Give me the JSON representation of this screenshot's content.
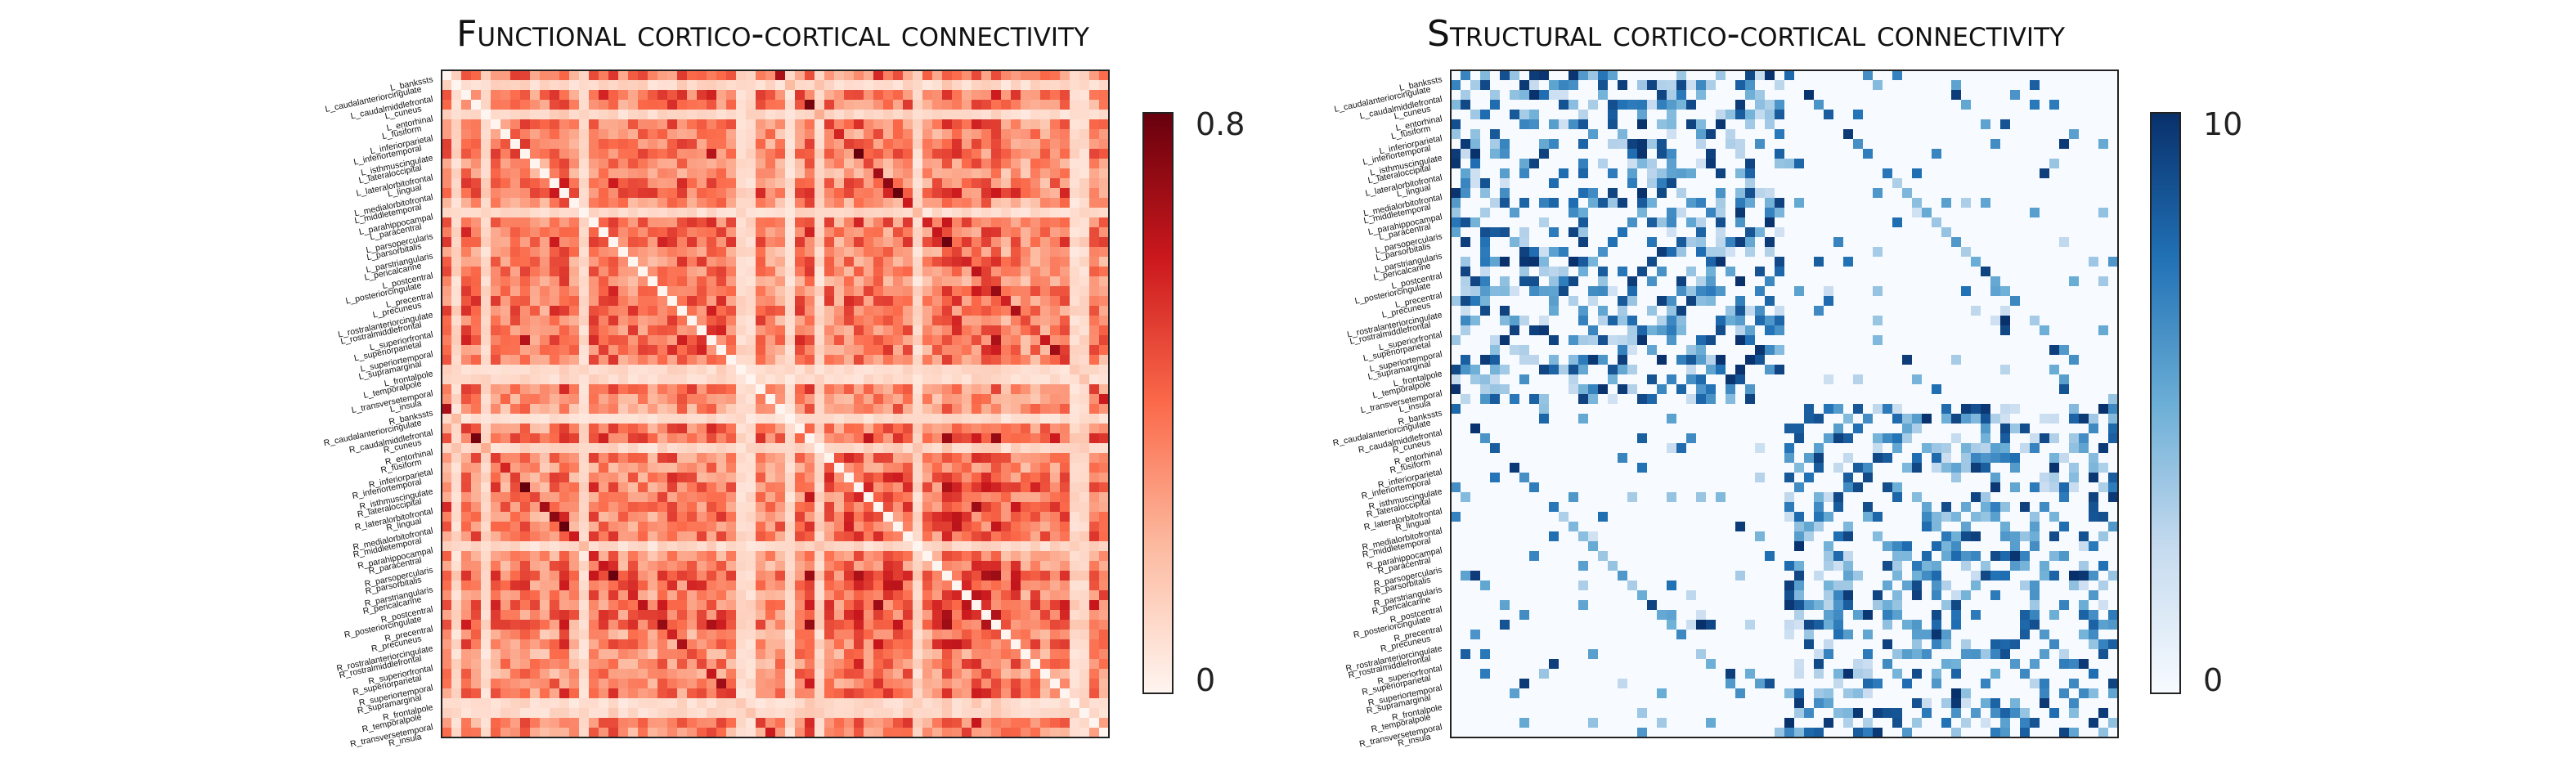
{
  "chart_data": [
    {
      "type": "heatmap",
      "title": "Functional cortico-cortical connectivity",
      "xlabel": "",
      "ylabel": "",
      "colormap": "Reds",
      "colorbar_ticks": [
        "0.8",
        "0"
      ],
      "vmin": 0,
      "vmax": 0.8,
      "grid": false,
      "legend": "colorbar right",
      "rows": [
        "L_bankssts",
        "L_caudalanteriorcingulate",
        "L_caudalmiddlefrontal",
        "L_cuneus",
        "L_entorhinal",
        "L_fusiform",
        "L_inferiorparietal",
        "L_inferiortemporal",
        "L_isthmuscingulate",
        "L_lateraloccipital",
        "L_lateralorbitofrontal",
        "L_lingual",
        "L_medialorbitofrontal",
        "L_middletemporal",
        "L_parahippocampal",
        "L_paracentral",
        "L_parsopercularis",
        "L_parsorbitalis",
        "L_parstriangularis",
        "L_pericalcarine",
        "L_postcentral",
        "L_posteriorcingulate",
        "L_precentral",
        "L_precuneus",
        "L_rostralanteriorcingulate",
        "L_rostralmiddlefrontal",
        "L_superiorfrontal",
        "L_superiorparietal",
        "L_superiortemporal",
        "L_supramarginal",
        "L_frontalpole",
        "L_temporalpole",
        "L_transversetemporal",
        "L_insula",
        "R_bankssts",
        "R_caudalanteriorcingulate",
        "R_caudalmiddlefrontal",
        "R_cuneus",
        "R_entorhinal",
        "R_fusiform",
        "R_inferiorparietal",
        "R_inferiortemporal",
        "R_isthmuscingulate",
        "R_lateraloccipital",
        "R_lateralorbitofrontal",
        "R_lingual",
        "R_medialorbitofrontal",
        "R_middletemporal",
        "R_parahippocampal",
        "R_paracentral",
        "R_parsopercularis",
        "R_parsorbitalis",
        "R_parstriangularis",
        "R_pericalcarine",
        "R_postcentral",
        "R_posteriorcingulate",
        "R_precentral",
        "R_precuneus",
        "R_rostralanteriorcingulate",
        "R_rostralmiddlefrontal",
        "R_superiorfrontal",
        "R_superiorparietal",
        "R_superiortemporal",
        "R_supramarginal",
        "R_frontalpole",
        "R_temporalpole",
        "R_transversetemporal",
        "R_insula"
      ],
      "weak_rows": [
        1,
        4,
        14,
        30,
        31,
        35,
        38,
        48,
        64,
        65
      ],
      "diagonal_value": 0
    },
    {
      "type": "heatmap",
      "title": "Structural cortico-cortical connectivity",
      "xlabel": "",
      "ylabel": "",
      "colormap": "Blues",
      "colorbar_ticks": [
        "10",
        "0"
      ],
      "vmin": 0,
      "vmax": 10,
      "grid": false,
      "legend": "colorbar right",
      "rows": [
        "L_bankssts",
        "L_caudalanteriorcingulate",
        "L_caudalmiddlefrontal",
        "L_cuneus",
        "L_entorhinal",
        "L_fusiform",
        "L_inferiorparietal",
        "L_inferiortemporal",
        "L_isthmuscingulate",
        "L_lateraloccipital",
        "L_lateralorbitofrontal",
        "L_lingual",
        "L_medialorbitofrontal",
        "L_middletemporal",
        "L_parahippocampal",
        "L_paracentral",
        "L_parsopercularis",
        "L_parsorbitalis",
        "L_parstriangularis",
        "L_pericalcarine",
        "L_postcentral",
        "L_posteriorcingulate",
        "L_precentral",
        "L_precuneus",
        "L_rostralanteriorcingulate",
        "L_rostralmiddlefrontal",
        "L_superiorfrontal",
        "L_superiorparietal",
        "L_superiortemporal",
        "L_supramarginal",
        "L_frontalpole",
        "L_temporalpole",
        "L_transversetemporal",
        "L_insula",
        "R_bankssts",
        "R_caudalanteriorcingulate",
        "R_caudalmiddlefrontal",
        "R_cuneus",
        "R_entorhinal",
        "R_fusiform",
        "R_inferiorparietal",
        "R_inferiortemporal",
        "R_isthmuscingulate",
        "R_lateraloccipital",
        "R_lateralorbitofrontal",
        "R_lingual",
        "R_medialorbitofrontal",
        "R_middletemporal",
        "R_parahippocampal",
        "R_paracentral",
        "R_parsopercularis",
        "R_parsorbitalis",
        "R_parstriangularis",
        "R_pericalcarine",
        "R_postcentral",
        "R_posteriorcingulate",
        "R_precentral",
        "R_precuneus",
        "R_rostralanteriorcingulate",
        "R_rostralmiddlefrontal",
        "R_superiorfrontal",
        "R_superiorparietal",
        "R_superiortemporal",
        "R_supramarginal",
        "R_frontalpole",
        "R_temporalpole",
        "R_transversetemporal",
        "R_insula"
      ],
      "structure": "dense within-hemisphere blocks (L-L, R-R), sparse between hemispheres",
      "within_hemisphere_density": 0.45,
      "between_hemisphere_density": 0.06,
      "diagonal_value": 0
    }
  ]
}
